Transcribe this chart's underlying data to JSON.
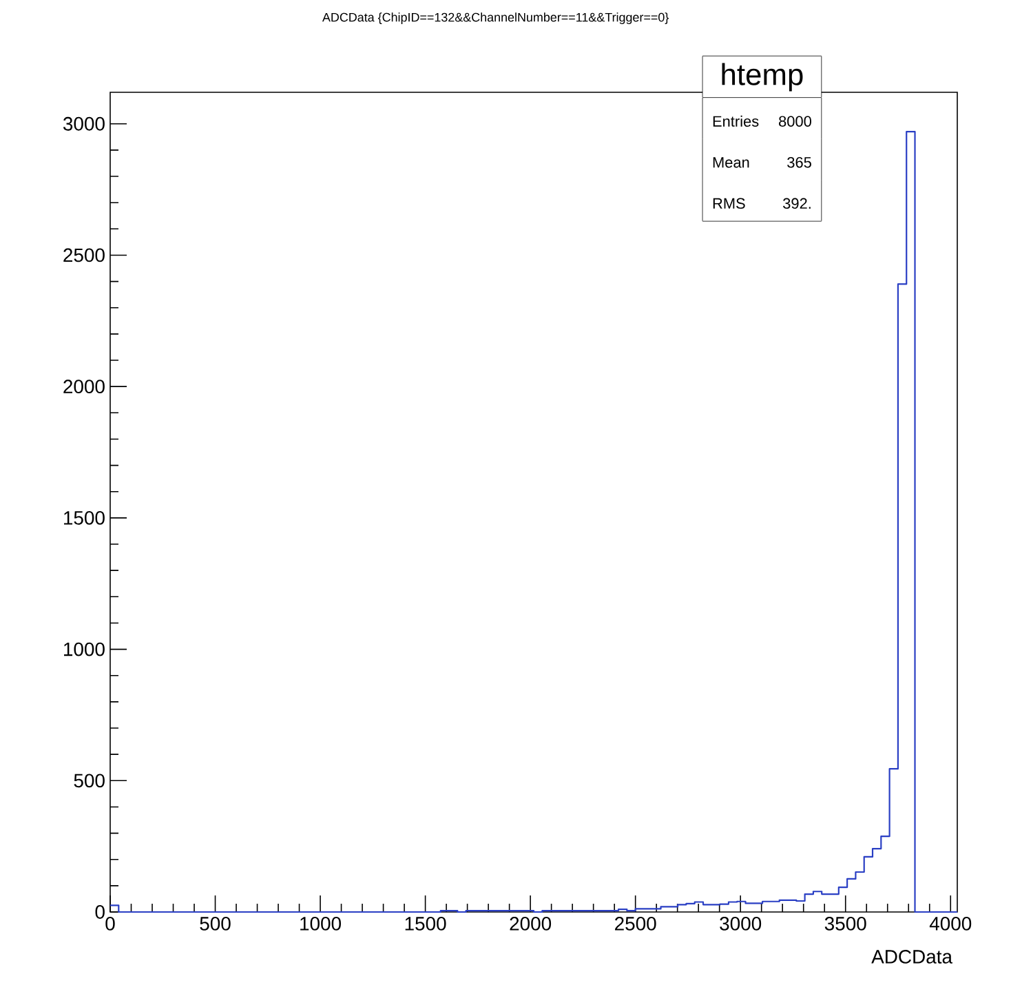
{
  "chart_data": {
    "type": "histogram",
    "title": "ADCData {ChipID==132&&ChannelNumber==11&&Trigger==0}",
    "xlabel": "ADCData",
    "color": "#2a3fc4",
    "bins": [
      0,
      40.32,
      80.64,
      120.96,
      161.28,
      201.6,
      241.92,
      282.24,
      322.56,
      362.88,
      403.2,
      443.52,
      483.84,
      524.16,
      564.48,
      604.8,
      645.12,
      685.44,
      725.76,
      766.08,
      806.4,
      846.72,
      887.04,
      927.36,
      967.68,
      1008,
      1048.32,
      1088.64,
      1128.96,
      1169.28,
      1209.6,
      1249.92,
      1290.24,
      1330.56,
      1370.88,
      1411.2,
      1451.52,
      1491.84,
      1532.16,
      1572.48,
      1612.8,
      1653.12,
      1693.44,
      1733.76,
      1774.08,
      1814.4,
      1854.72,
      1895.04,
      1935.36,
      1975.68,
      2016,
      2056.32,
      2096.64,
      2136.96,
      2177.28,
      2217.6,
      2257.92,
      2298.24,
      2338.56,
      2378.88,
      2419.2,
      2459.52,
      2499.84,
      2540.16,
      2580.48,
      2620.8,
      2661.12,
      2701.44,
      2741.76,
      2782.08,
      2822.4,
      2862.72,
      2903.04,
      2943.36,
      2983.68,
      3024,
      3064.32,
      3104.64,
      3144.96,
      3185.28,
      3225.6,
      3265.92,
      3306.24,
      3346.56,
      3386.88,
      3427.2,
      3467.52,
      3507.84,
      3548.16,
      3588.48,
      3628.8,
      3669.12,
      3709.44,
      3749.76,
      3790.08,
      3830.4,
      3870.72,
      3911.04,
      3951.36,
      3991.68,
      4032
    ],
    "values": [
      25,
      0,
      0,
      0,
      0,
      0,
      0,
      0,
      0,
      0,
      0,
      0,
      0,
      0,
      0,
      0,
      0,
      0,
      0,
      0,
      0,
      0,
      0,
      0,
      0,
      0,
      0,
      0,
      0,
      0,
      0,
      0,
      0,
      0,
      0,
      0,
      0,
      0,
      0,
      5,
      5,
      0,
      5,
      5,
      5,
      5,
      5,
      5,
      5,
      5,
      0,
      5,
      5,
      5,
      5,
      5,
      5,
      5,
      5,
      5,
      10,
      5,
      12,
      12,
      12,
      20,
      20,
      28,
      32,
      38,
      28,
      28,
      30,
      38,
      40,
      33,
      33,
      40,
      40,
      45,
      45,
      42,
      68,
      78,
      68,
      68,
      94,
      126,
      152,
      210,
      241,
      288,
      545,
      2390,
      2970,
      0,
      0,
      0,
      0,
      0
    ],
    "xlim": [
      0,
      4032
    ],
    "ylim": [
      0,
      3120
    ],
    "xticks": [
      0,
      500,
      1000,
      1500,
      2000,
      2500,
      3000,
      3500,
      4000
    ],
    "yticks": [
      0,
      500,
      1000,
      1500,
      2000,
      2500,
      3000
    ],
    "annotations": [
      "htemp",
      "Entries",
      "8000",
      "Mean",
      "365",
      "RMS",
      "392."
    ]
  }
}
